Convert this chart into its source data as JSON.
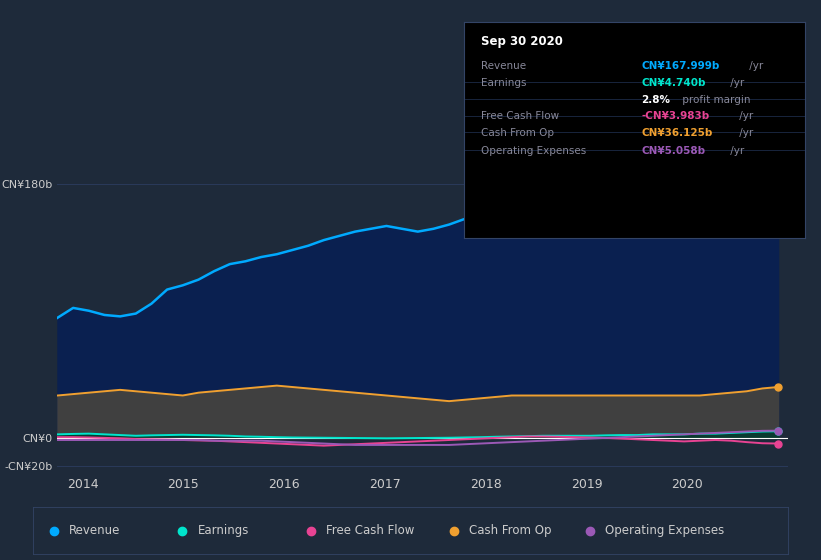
{
  "bg_color": "#1e2a3a",
  "plot_bg_color": "#1e2a3a",
  "ylim": [
    -25,
    195
  ],
  "yticks": [
    -20,
    0,
    180
  ],
  "ytick_labels": [
    "-CN¥20b",
    "CN¥0",
    "CN¥180b"
  ],
  "xlim": [
    2013.75,
    2021.0
  ],
  "xtick_years": [
    2014,
    2015,
    2016,
    2017,
    2018,
    2019,
    2020
  ],
  "revenue_color": "#00aaff",
  "earnings_color": "#00e5cc",
  "fcf_color": "#e84393",
  "cashfromop_color": "#f0a030",
  "opex_color": "#9b59b6",
  "revenue_fill": "#0a2050",
  "cashfromop_fill": "#404040",
  "earnings_fill": "#0a3a30",
  "revenue": [
    85,
    92,
    90,
    87,
    86,
    88,
    95,
    105,
    108,
    112,
    118,
    123,
    125,
    128,
    130,
    133,
    136,
    140,
    143,
    146,
    148,
    150,
    148,
    146,
    148,
    151,
    155,
    158,
    159,
    158,
    157,
    159,
    160,
    161,
    161,
    163,
    161,
    163,
    162,
    161,
    159,
    161,
    162,
    162,
    162,
    167,
    168
  ],
  "earnings": [
    2.5,
    2.8,
    3.0,
    2.5,
    2.0,
    1.5,
    1.8,
    2.0,
    2.2,
    2.0,
    1.8,
    1.5,
    1.0,
    0.8,
    0.5,
    0.3,
    0.2,
    0.1,
    0.0,
    -0.1,
    -0.2,
    -0.3,
    -0.2,
    -0.1,
    0.0,
    0.1,
    0.3,
    0.5,
    0.8,
    1.0,
    1.2,
    1.5,
    1.5,
    1.5,
    1.5,
    1.8,
    2.0,
    2.0,
    2.5,
    2.5,
    2.5,
    3.0,
    3.0,
    3.5,
    4.0,
    4.5,
    4.7
  ],
  "fcf": [
    0.5,
    0.5,
    0.3,
    0.0,
    -0.3,
    -0.8,
    -1.0,
    -1.2,
    -1.5,
    -1.8,
    -2.0,
    -2.5,
    -3.0,
    -3.5,
    -4.0,
    -4.5,
    -5.0,
    -5.5,
    -5.0,
    -4.5,
    -4.0,
    -3.5,
    -3.0,
    -2.5,
    -2.0,
    -1.5,
    -1.0,
    -0.5,
    0.0,
    0.5,
    1.0,
    1.0,
    0.8,
    0.5,
    0.2,
    0.0,
    -0.5,
    -1.0,
    -1.5,
    -2.0,
    -2.5,
    -2.0,
    -1.5,
    -2.0,
    -3.0,
    -3.8,
    -4.0
  ],
  "cashfromop": [
    30,
    31,
    32,
    33,
    34,
    33,
    32,
    31,
    30,
    32,
    33,
    34,
    35,
    36,
    37,
    36,
    35,
    34,
    33,
    32,
    31,
    30,
    29,
    28,
    27,
    26,
    27,
    28,
    29,
    30,
    30,
    30,
    30,
    30,
    30,
    30,
    30,
    30,
    30,
    30,
    30,
    30,
    31,
    32,
    33,
    35,
    36
  ],
  "opex": [
    -1.5,
    -1.5,
    -1.5,
    -1.5,
    -1.5,
    -1.5,
    -1.5,
    -1.5,
    -1.5,
    -1.5,
    -2.0,
    -2.0,
    -2.0,
    -2.0,
    -2.5,
    -3.0,
    -3.5,
    -4.0,
    -4.5,
    -5.0,
    -5.0,
    -5.0,
    -5.0,
    -5.0,
    -5.0,
    -5.0,
    -4.5,
    -4.0,
    -3.5,
    -3.0,
    -2.5,
    -2.0,
    -1.5,
    -1.0,
    -0.5,
    0.0,
    0.5,
    1.0,
    1.5,
    2.0,
    2.5,
    3.0,
    3.5,
    4.0,
    4.5,
    5.0,
    5.1
  ],
  "legend_labels": [
    "Revenue",
    "Earnings",
    "Free Cash Flow",
    "Cash From Op",
    "Operating Expenses"
  ],
  "legend_colors": [
    "#00aaff",
    "#00e5cc",
    "#e84393",
    "#f0a030",
    "#9b59b6"
  ],
  "tooltip": {
    "title": "Sep 30 2020",
    "rows": [
      {
        "label": "Revenue",
        "value": "CN¥167.999b",
        "unit": " /yr",
        "color": "#00aaff"
      },
      {
        "label": "Earnings",
        "value": "CN¥4.740b",
        "unit": " /yr",
        "color": "#00e5cc"
      },
      {
        "label": "",
        "value": "2.8%",
        "unit": " profit margin",
        "color": "#ffffff"
      },
      {
        "label": "Free Cash Flow",
        "value": "-CN¥3.983b",
        "unit": " /yr",
        "color": "#e84393"
      },
      {
        "label": "Cash From Op",
        "value": "CN¥36.125b",
        "unit": " /yr",
        "color": "#f0a030"
      },
      {
        "label": "Operating Expenses",
        "value": "CN¥5.058b",
        "unit": " /yr",
        "color": "#9b59b6"
      }
    ]
  }
}
